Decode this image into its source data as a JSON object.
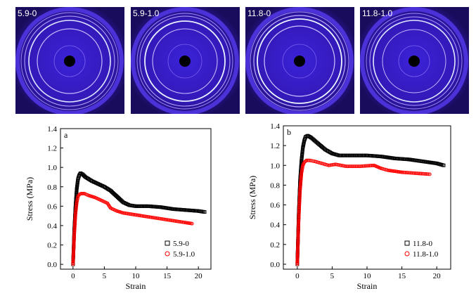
{
  "saxs_images": [
    {
      "label": "5.9-0"
    },
    {
      "label": "5.9-1.0"
    },
    {
      "label": "11.8-0"
    },
    {
      "label": "11.8-1.0"
    }
  ],
  "colors": {
    "series_black": "#000000",
    "series_red": "#ff0000",
    "saxs_background": "#3a1fc0"
  },
  "chart_data": [
    {
      "type": "scatter",
      "panel_label": "a",
      "xlabel": "Strain",
      "ylabel": "Stress (MPa)",
      "xlim": [
        -2,
        22
      ],
      "ylim": [
        -0.05,
        1.4
      ],
      "xticks": [
        0,
        5,
        10,
        15,
        20
      ],
      "yticks": [
        0.0,
        0.2,
        0.4,
        0.6,
        0.8,
        1.0,
        1.2,
        1.4
      ],
      "xtick_labels": [
        "0",
        "5",
        "10",
        "15",
        "20"
      ],
      "ytick_labels": [
        "0.0",
        "0.2",
        "0.4",
        "0.6",
        "0.8",
        "1.0",
        "1.2",
        "1.4"
      ],
      "legend_position": "bottom-right",
      "grid": false,
      "series": [
        {
          "name": "5.9-0",
          "marker": "square",
          "color": "#000000",
          "x": [
            0,
            0.2,
            0.4,
            0.6,
            0.8,
            1.0,
            1.2,
            1.5,
            2,
            3,
            4,
            5,
            6,
            7,
            8,
            9,
            10,
            12,
            14,
            16,
            18,
            20,
            21
          ],
          "y": [
            0,
            0.35,
            0.6,
            0.78,
            0.88,
            0.92,
            0.94,
            0.93,
            0.9,
            0.86,
            0.83,
            0.8,
            0.76,
            0.7,
            0.64,
            0.61,
            0.6,
            0.6,
            0.59,
            0.57,
            0.56,
            0.55,
            0.54
          ]
        },
        {
          "name": "5.9-1.0",
          "marker": "circle",
          "color": "#ff0000",
          "x": [
            0,
            0.2,
            0.4,
            0.6,
            0.8,
            1.0,
            1.3,
            1.8,
            2.5,
            3.5,
            4.5,
            5.5,
            6,
            7,
            8,
            10,
            12,
            14,
            16,
            18,
            19
          ],
          "y": [
            0,
            0.3,
            0.52,
            0.64,
            0.7,
            0.72,
            0.73,
            0.73,
            0.71,
            0.69,
            0.66,
            0.63,
            0.58,
            0.55,
            0.53,
            0.51,
            0.49,
            0.47,
            0.45,
            0.43,
            0.42
          ]
        }
      ]
    },
    {
      "type": "scatter",
      "panel_label": "b",
      "xlabel": "Strain",
      "ylabel": "Stress (MPa)",
      "xlim": [
        -2,
        22
      ],
      "ylim": [
        -0.05,
        1.4
      ],
      "xticks": [
        0,
        5,
        10,
        15,
        20
      ],
      "yticks": [
        0.0,
        0.2,
        0.4,
        0.6,
        0.8,
        1.0,
        1.2,
        1.4
      ],
      "xtick_labels": [
        "0",
        "5",
        "10",
        "15",
        "20"
      ],
      "ytick_labels": [
        "0.0",
        "0.2",
        "0.4",
        "0.6",
        "0.8",
        "1.0",
        "1.2",
        "1.4"
      ],
      "legend_position": "bottom-right",
      "grid": false,
      "series": [
        {
          "name": "11.8-0",
          "marker": "square",
          "color": "#000000",
          "x": [
            0,
            0.2,
            0.4,
            0.6,
            0.8,
            1.0,
            1.2,
            1.5,
            2,
            3,
            4,
            5,
            6,
            8,
            10,
            12,
            14,
            16,
            18,
            20,
            21
          ],
          "y": [
            0,
            0.5,
            0.85,
            1.05,
            1.18,
            1.25,
            1.29,
            1.3,
            1.28,
            1.22,
            1.16,
            1.12,
            1.1,
            1.1,
            1.1,
            1.09,
            1.07,
            1.06,
            1.04,
            1.02,
            1.0
          ]
        },
        {
          "name": "11.8-1.0",
          "marker": "circle",
          "color": "#ff0000",
          "x": [
            0,
            0.2,
            0.4,
            0.6,
            0.8,
            1.0,
            1.3,
            1.8,
            2.5,
            3.5,
            4.5,
            5.5,
            7,
            9,
            11,
            12,
            13,
            15,
            17,
            19
          ],
          "y": [
            0,
            0.45,
            0.75,
            0.92,
            1.0,
            1.03,
            1.05,
            1.05,
            1.04,
            1.02,
            1.0,
            1.01,
            0.99,
            0.99,
            1.0,
            0.97,
            0.95,
            0.93,
            0.92,
            0.91
          ]
        }
      ]
    }
  ]
}
